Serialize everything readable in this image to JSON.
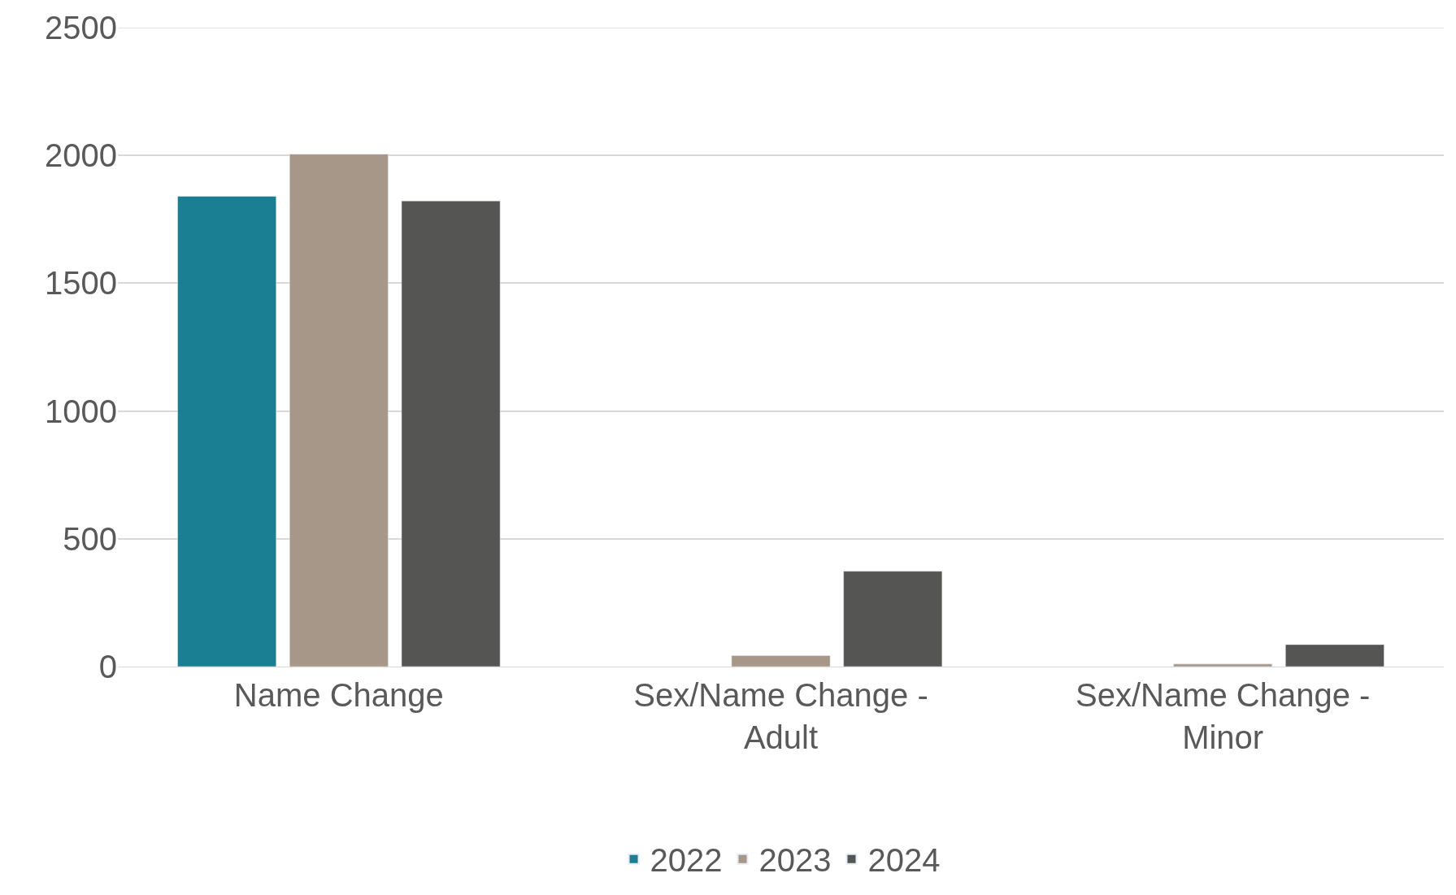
{
  "chart_data": {
    "type": "bar",
    "categories": [
      "Name Change",
      "Sex/Name Change - Adult",
      "Sex/Name Change - Minor"
    ],
    "series": [
      {
        "name": "2022",
        "color": "#1a7f93",
        "values": [
          1840,
          null,
          null
        ]
      },
      {
        "name": "2023",
        "color": "#a69788",
        "values": [
          2005,
          43,
          10
        ]
      },
      {
        "name": "2024",
        "color": "#555553",
        "values": [
          1822,
          373,
          86
        ]
      }
    ],
    "ylim": [
      0,
      2500
    ],
    "yticks": [
      0,
      500,
      1000,
      1500,
      2000,
      2500
    ],
    "grid": "y",
    "legend": "bottom"
  }
}
